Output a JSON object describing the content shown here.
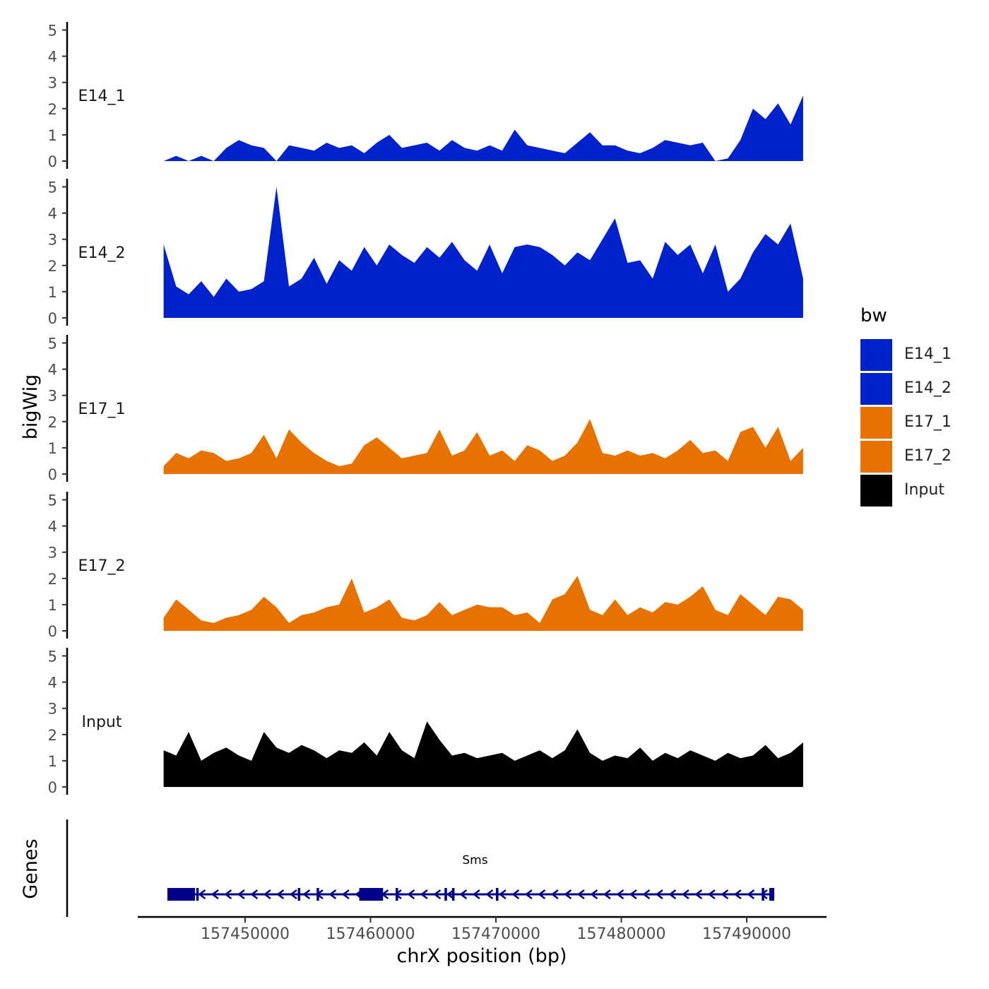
{
  "chart_data": {
    "type": "area",
    "title": "",
    "xlabel": "chrX position (bp)",
    "ylabel_tracks": "bigWig",
    "ylabel_genes": "Genes",
    "xlim": [
      157443500,
      157494500
    ],
    "x_ticks": [
      157450000,
      157460000,
      157470000,
      157480000,
      157490000
    ],
    "x_tick_labels": [
      "157450000",
      "157460000",
      "157470000",
      "157480000",
      "157490000"
    ],
    "ylim": [
      0,
      5
    ],
    "y_ticks": [
      0,
      1,
      2,
      3,
      4,
      5
    ],
    "y_tick_labels": [
      "0",
      "1",
      "2",
      "3",
      "4",
      "5"
    ],
    "legend": {
      "title": "bw",
      "position": "right",
      "entries": [
        {
          "label": "E14_1",
          "color": "#0022CC"
        },
        {
          "label": "E14_2",
          "color": "#0022CC"
        },
        {
          "label": "E17_1",
          "color": "#E87200"
        },
        {
          "label": "E17_2",
          "color": "#E87200"
        },
        {
          "label": "Input",
          "color": "#000000"
        }
      ]
    },
    "series": [
      {
        "name": "E14_1",
        "color": "#0022CC",
        "x": [
          157443500,
          157444500,
          157445500,
          157446500,
          157447500,
          157448500,
          157449500,
          157450500,
          157451500,
          157452500,
          157453500,
          157454500,
          157455500,
          157456500,
          157457500,
          157458500,
          157459500,
          157460500,
          157461500,
          157462500,
          157463500,
          157464500,
          157465500,
          157466500,
          157467500,
          157468500,
          157469500,
          157470500,
          157471500,
          157472500,
          157473500,
          157474500,
          157475500,
          157476500,
          157477500,
          157478500,
          157479500,
          157480500,
          157481500,
          157482500,
          157483500,
          157484500,
          157485500,
          157486500,
          157487500,
          157488500,
          157489500,
          157490500,
          157491500,
          157492500,
          157493500,
          157494500
        ],
        "values": [
          0,
          0.2,
          0,
          0.2,
          0,
          0.5,
          0.8,
          0.6,
          0.5,
          0,
          0.6,
          0.5,
          0.4,
          0.7,
          0.5,
          0.6,
          0.3,
          0.7,
          1.0,
          0.5,
          0.6,
          0.7,
          0.4,
          0.8,
          0.5,
          0.4,
          0.6,
          0.4,
          1.2,
          0.6,
          0.5,
          0.4,
          0.3,
          0.7,
          1.1,
          0.6,
          0.6,
          0.4,
          0.3,
          0.5,
          0.8,
          0.7,
          0.6,
          0.7,
          0,
          0.1,
          0.8,
          2.0,
          1.6,
          2.2,
          1.4,
          2.5
        ]
      },
      {
        "name": "E14_2",
        "color": "#0022CC",
        "x": [
          157443500,
          157444500,
          157445500,
          157446500,
          157447500,
          157448500,
          157449500,
          157450500,
          157451500,
          157452500,
          157453500,
          157454500,
          157455500,
          157456500,
          157457500,
          157458500,
          157459500,
          157460500,
          157461500,
          157462500,
          157463500,
          157464500,
          157465500,
          157466500,
          157467500,
          157468500,
          157469500,
          157470500,
          157471500,
          157472500,
          157473500,
          157474500,
          157475500,
          157476500,
          157477500,
          157478500,
          157479500,
          157480500,
          157481500,
          157482500,
          157483500,
          157484500,
          157485500,
          157486500,
          157487500,
          157488500,
          157489500,
          157490500,
          157491500,
          157492500,
          157493500,
          157494500
        ],
        "values": [
          2.8,
          1.2,
          0.9,
          1.4,
          0.8,
          1.5,
          1.0,
          1.1,
          1.4,
          5.0,
          1.2,
          1.5,
          2.3,
          1.3,
          2.2,
          1.8,
          2.7,
          2.0,
          2.8,
          2.4,
          2.1,
          2.7,
          2.3,
          2.9,
          2.2,
          1.8,
          2.8,
          1.7,
          2.7,
          2.8,
          2.7,
          2.4,
          2.0,
          2.5,
          2.2,
          3.0,
          3.8,
          2.1,
          2.2,
          1.5,
          2.9,
          2.4,
          2.8,
          1.7,
          2.8,
          1.0,
          1.5,
          2.5,
          3.2,
          2.8,
          3.6,
          1.5
        ]
      },
      {
        "name": "E17_1",
        "color": "#E87200",
        "x": [
          157443500,
          157444500,
          157445500,
          157446500,
          157447500,
          157448500,
          157449500,
          157450500,
          157451500,
          157452500,
          157453500,
          157454500,
          157455500,
          157456500,
          157457500,
          157458500,
          157459500,
          157460500,
          157461500,
          157462500,
          157463500,
          157464500,
          157465500,
          157466500,
          157467500,
          157468500,
          157469500,
          157470500,
          157471500,
          157472500,
          157473500,
          157474500,
          157475500,
          157476500,
          157477500,
          157478500,
          157479500,
          157480500,
          157481500,
          157482500,
          157483500,
          157484500,
          157485500,
          157486500,
          157487500,
          157488500,
          157489500,
          157490500,
          157491500,
          157492500,
          157493500,
          157494500
        ],
        "values": [
          0.3,
          0.8,
          0.6,
          0.9,
          0.8,
          0.5,
          0.6,
          0.8,
          1.5,
          0.6,
          1.7,
          1.2,
          0.8,
          0.5,
          0.3,
          0.4,
          1.1,
          1.4,
          1.0,
          0.6,
          0.7,
          0.8,
          1.7,
          0.7,
          0.9,
          1.6,
          0.7,
          0.9,
          0.5,
          1.1,
          0.9,
          0.5,
          0.7,
          1.2,
          2.1,
          0.8,
          0.7,
          0.9,
          0.7,
          0.8,
          0.6,
          0.9,
          1.3,
          0.8,
          0.9,
          0.5,
          1.6,
          1.8,
          1.0,
          1.8,
          0.5,
          1.0
        ]
      },
      {
        "name": "E17_2",
        "color": "#E87200",
        "x": [
          157443500,
          157444500,
          157445500,
          157446500,
          157447500,
          157448500,
          157449500,
          157450500,
          157451500,
          157452500,
          157453500,
          157454500,
          157455500,
          157456500,
          157457500,
          157458500,
          157459500,
          157460500,
          157461500,
          157462500,
          157463500,
          157464500,
          157465500,
          157466500,
          157467500,
          157468500,
          157469500,
          157470500,
          157471500,
          157472500,
          157473500,
          157474500,
          157475500,
          157476500,
          157477500,
          157478500,
          157479500,
          157480500,
          157481500,
          157482500,
          157483500,
          157484500,
          157485500,
          157486500,
          157487500,
          157488500,
          157489500,
          157490500,
          157491500,
          157492500,
          157493500,
          157494500
        ],
        "values": [
          0.5,
          1.2,
          0.8,
          0.4,
          0.3,
          0.5,
          0.6,
          0.8,
          1.3,
          0.9,
          0.3,
          0.6,
          0.7,
          0.9,
          1.0,
          2.0,
          0.7,
          0.9,
          1.2,
          0.5,
          0.4,
          0.6,
          1.1,
          0.6,
          0.8,
          1.0,
          0.9,
          0.9,
          0.6,
          0.7,
          0.3,
          1.2,
          1.4,
          2.1,
          0.8,
          0.6,
          1.2,
          0.6,
          0.9,
          0.7,
          1.1,
          1.0,
          1.3,
          1.7,
          0.8,
          0.6,
          1.4,
          1.0,
          0.6,
          1.3,
          1.2,
          0.8
        ]
      },
      {
        "name": "Input",
        "color": "#000000",
        "x": [
          157443500,
          157444500,
          157445500,
          157446500,
          157447500,
          157448500,
          157449500,
          157450500,
          157451500,
          157452500,
          157453500,
          157454500,
          157455500,
          157456500,
          157457500,
          157458500,
          157459500,
          157460500,
          157461500,
          157462500,
          157463500,
          157464500,
          157465500,
          157466500,
          157467500,
          157468500,
          157469500,
          157470500,
          157471500,
          157472500,
          157473500,
          157474500,
          157475500,
          157476500,
          157477500,
          157478500,
          157479500,
          157480500,
          157481500,
          157482500,
          157483500,
          157484500,
          157485500,
          157486500,
          157487500,
          157488500,
          157489500,
          157490500,
          157491500,
          157492500,
          157493500,
          157494500
        ],
        "values": [
          1.4,
          1.2,
          2.1,
          1.0,
          1.3,
          1.5,
          1.2,
          1.0,
          2.1,
          1.5,
          1.3,
          1.6,
          1.4,
          1.1,
          1.4,
          1.3,
          1.7,
          1.2,
          2.1,
          1.4,
          1.1,
          2.5,
          1.8,
          1.2,
          1.3,
          1.1,
          1.2,
          1.3,
          1.0,
          1.2,
          1.4,
          1.1,
          1.4,
          2.2,
          1.3,
          1.0,
          1.2,
          1.1,
          1.5,
          1.0,
          1.3,
          1.1,
          1.4,
          1.2,
          1.0,
          1.3,
          1.1,
          1.2,
          1.6,
          1.1,
          1.3,
          1.7
        ]
      }
    ],
    "genes": [
      {
        "name": "Sms",
        "strand": "-",
        "start": 157443800,
        "end": 157492200,
        "thick_exons": [
          [
            157443800,
            157446000
          ],
          [
            157459100,
            157461000
          ],
          [
            157491800,
            157492200
          ]
        ],
        "thin_exons": [
          [
            157446100,
            157446300
          ],
          [
            157454200,
            157454400
          ],
          [
            157455700,
            157455900
          ],
          [
            157462000,
            157462200
          ],
          [
            157465900,
            157466100
          ],
          [
            157466500,
            157466700
          ],
          [
            157470000,
            157470200
          ],
          [
            157491200,
            157491400
          ]
        ]
      }
    ]
  }
}
